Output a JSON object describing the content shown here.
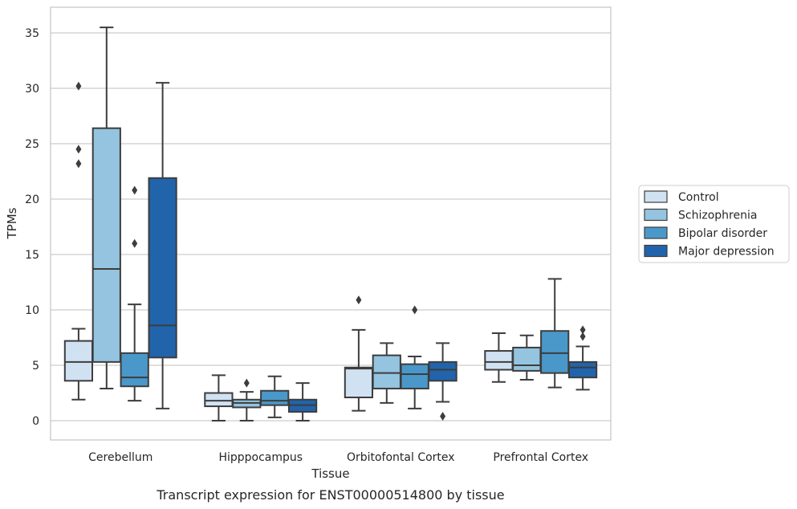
{
  "chart_data": {
    "type": "boxplot",
    "caption": "Transcript expression for ENST00000514800 by tissue",
    "xlabel": "Tissue",
    "ylabel": "TPMs",
    "ylim": [
      -1.7,
      37.2
    ],
    "yticks": [
      0,
      5,
      10,
      15,
      20,
      25,
      30,
      35
    ],
    "grid": "horizontal",
    "legend_position": "right",
    "categories": [
      "Cerebellum",
      "Hipppocampus",
      "Orbitofontal Cortex",
      "Prefrontal Cortex"
    ],
    "series": [
      {
        "name": "Control",
        "color": "#d0e1f2",
        "boxes": [
          {
            "whislo": 1.9,
            "q1": 3.6,
            "med": 5.3,
            "q3": 7.2,
            "whishi": 8.3,
            "fliers": [
              23.2,
              24.5,
              30.2
            ]
          },
          {
            "whislo": 0.0,
            "q1": 1.3,
            "med": 1.8,
            "q3": 2.5,
            "whishi": 4.1,
            "fliers": []
          },
          {
            "whislo": 0.9,
            "q1": 2.1,
            "med": 4.7,
            "q3": 4.8,
            "whishi": 8.2,
            "fliers": [
              10.9
            ]
          },
          {
            "whislo": 3.5,
            "q1": 4.6,
            "med": 5.3,
            "q3": 6.3,
            "whishi": 7.9,
            "fliers": []
          }
        ]
      },
      {
        "name": "Schizophrenia",
        "color": "#94c4df",
        "boxes": [
          {
            "whislo": 2.9,
            "q1": 5.3,
            "med": 13.7,
            "q3": 26.4,
            "whishi": 35.5,
            "fliers": []
          },
          {
            "whislo": 0.0,
            "q1": 1.2,
            "med": 1.6,
            "q3": 1.9,
            "whishi": 2.6,
            "fliers": [
              3.4
            ]
          },
          {
            "whislo": 1.6,
            "q1": 2.9,
            "med": 4.3,
            "q3": 5.9,
            "whishi": 7.0,
            "fliers": []
          },
          {
            "whislo": 3.7,
            "q1": 4.5,
            "med": 5.0,
            "q3": 6.6,
            "whishi": 7.7,
            "fliers": []
          }
        ]
      },
      {
        "name": "Bipolar disorder",
        "color": "#4a98c9",
        "boxes": [
          {
            "whislo": 1.8,
            "q1": 3.1,
            "med": 3.9,
            "q3": 6.1,
            "whishi": 10.5,
            "fliers": [
              16.0,
              20.8
            ]
          },
          {
            "whislo": 0.3,
            "q1": 1.4,
            "med": 1.8,
            "q3": 2.7,
            "whishi": 4.0,
            "fliers": []
          },
          {
            "whislo": 1.1,
            "q1": 2.9,
            "med": 4.2,
            "q3": 5.1,
            "whishi": 5.8,
            "fliers": [
              10.0
            ]
          },
          {
            "whislo": 3.0,
            "q1": 4.3,
            "med": 6.1,
            "q3": 8.1,
            "whishi": 12.8,
            "fliers": []
          }
        ]
      },
      {
        "name": "Major depression",
        "color": "#2164ab",
        "boxes": [
          {
            "whislo": 1.1,
            "q1": 5.7,
            "med": 8.6,
            "q3": 21.9,
            "whishi": 30.5,
            "fliers": []
          },
          {
            "whislo": 0.0,
            "q1": 0.8,
            "med": 1.4,
            "q3": 1.9,
            "whishi": 3.4,
            "fliers": []
          },
          {
            "whislo": 1.7,
            "q1": 3.6,
            "med": 4.6,
            "q3": 5.3,
            "whishi": 7.0,
            "fliers": [
              0.4
            ]
          },
          {
            "whislo": 2.8,
            "q1": 3.9,
            "med": 4.8,
            "q3": 5.3,
            "whishi": 6.7,
            "fliers": [
              7.6,
              8.2
            ]
          }
        ]
      }
    ]
  }
}
